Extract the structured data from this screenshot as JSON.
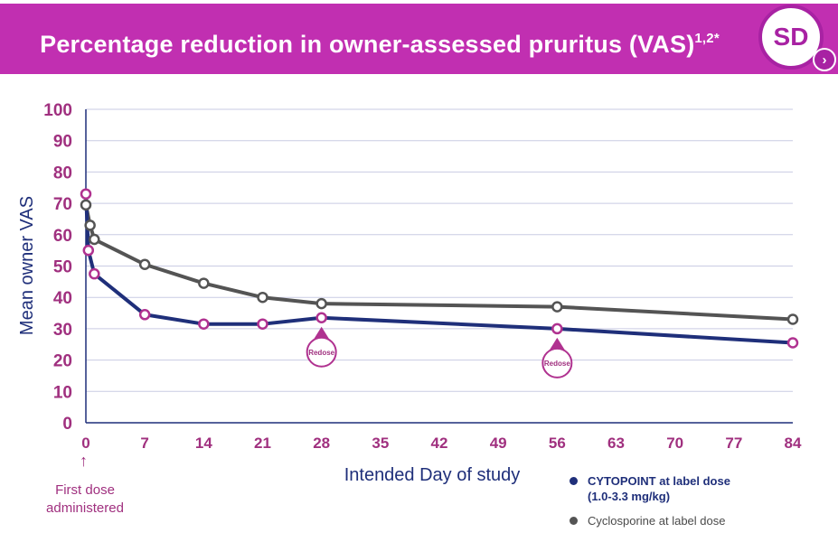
{
  "header": {
    "title": "Percentage reduction in owner-assessed pruritus (VAS)",
    "superscript": "1,2*",
    "badge": "SD",
    "badge_arrow": "›"
  },
  "annotations": {
    "first_dose_line1": "First dose",
    "first_dose_line2": "administered",
    "arrow": "↑"
  },
  "legend": {
    "cytopoint_line1": "CYTOPOINT at label dose",
    "cytopoint_line2": "(1.0-3.3 mg/kg)",
    "cyclosporine": "Cyclosporine at label dose"
  },
  "colors": {
    "brand": "#c12fb1",
    "cytopoint": "#1f2f7a",
    "cyclosporine": "#545454",
    "marker": "#b03290",
    "grid": "#c9cbe3"
  },
  "chart_data": {
    "type": "line",
    "xlabel": "Intended Day of study",
    "ylabel": "Mean owner VAS",
    "xlim": [
      0,
      84
    ],
    "ylim": [
      0,
      100
    ],
    "xticks": [
      0,
      7,
      14,
      21,
      28,
      35,
      42,
      49,
      56,
      63,
      70,
      77,
      84
    ],
    "yticks": [
      0,
      10,
      20,
      30,
      40,
      50,
      60,
      70,
      80,
      90,
      100
    ],
    "grid": true,
    "series": [
      {
        "name": "CYTOPOINT at label dose (1.0-3.3 mg/kg)",
        "x": [
          0,
          0.3,
          1,
          7,
          14,
          21,
          28,
          56,
          84
        ],
        "y": [
          73,
          55,
          47.5,
          34.5,
          31.5,
          31.5,
          33.5,
          30,
          25.5
        ]
      },
      {
        "name": "Cyclosporine at label dose",
        "x": [
          0,
          0.5,
          1,
          7,
          14,
          21,
          28,
          56,
          84
        ],
        "y": [
          69.5,
          63,
          58.5,
          50.5,
          44.5,
          40,
          38,
          37,
          33
        ]
      }
    ],
    "annotations": [
      {
        "label": "Redose",
        "x": 28
      },
      {
        "label": "Redose",
        "x": 56
      }
    ]
  }
}
